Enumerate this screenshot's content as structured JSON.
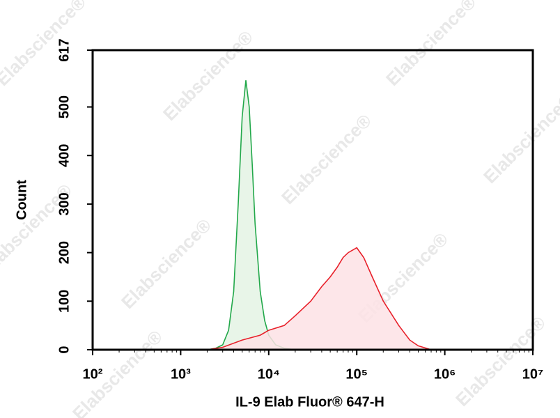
{
  "chart_data": {
    "type": "histogram-overlay",
    "watermark": "Elabscience®",
    "x_label": "IL-9 Elab Fluor® 647-H",
    "y_label": "Count",
    "log_x": true,
    "xlim": [
      100,
      10000000
    ],
    "ylim": [
      0,
      617
    ],
    "xticks": [
      {
        "value": 100,
        "label": "10²"
      },
      {
        "value": 1000,
        "label": "10³"
      },
      {
        "value": 10000,
        "label": "10⁴"
      },
      {
        "value": 100000,
        "label": "10⁵"
      },
      {
        "value": 1000000,
        "label": "10⁶"
      },
      {
        "value": 10000000,
        "label": "10⁷"
      }
    ],
    "yticks": [
      0,
      100,
      200,
      300,
      400,
      500,
      617
    ],
    "series": [
      {
        "color": "#22a84a",
        "fill": "#e4f3e4",
        "x": [
          2000,
          2500,
          3000,
          3500,
          4000,
          4500,
          5000,
          5500,
          6000,
          6500,
          7000,
          8000,
          9000,
          10000,
          12000,
          15000,
          20000
        ],
        "values": [
          0,
          3,
          10,
          40,
          120,
          300,
          480,
          555,
          500,
          380,
          260,
          120,
          60,
          30,
          10,
          3,
          0
        ]
      },
      {
        "color": "#e8202a",
        "fill": "#fde2e5",
        "x": [
          2000,
          3000,
          5000,
          8000,
          10000,
          15000,
          20000,
          30000,
          40000,
          50000,
          60000,
          70000,
          80000,
          100000,
          120000,
          150000,
          200000,
          300000,
          400000,
          500000,
          700000
        ],
        "values": [
          0,
          5,
          20,
          30,
          40,
          50,
          70,
          100,
          130,
          150,
          170,
          190,
          200,
          210,
          190,
          150,
          100,
          50,
          20,
          8,
          0
        ]
      }
    ]
  }
}
